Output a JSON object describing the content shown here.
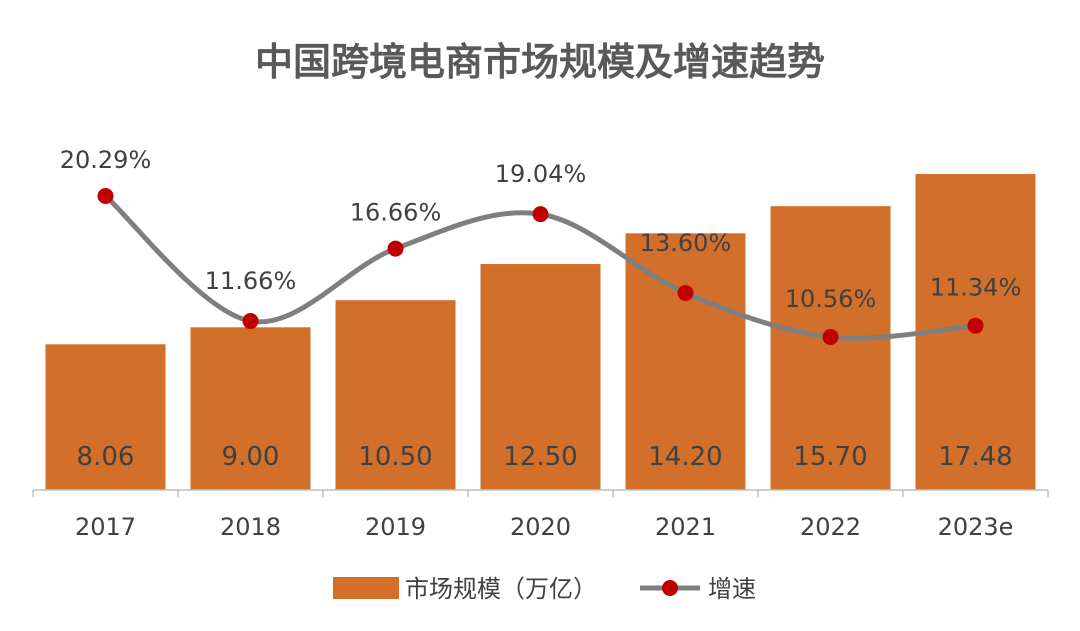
{
  "chart_data": {
    "title": "中国跨境电商市场规模及增速趋势",
    "categories": [
      "2017",
      "2018",
      "2019",
      "2020",
      "2021",
      "2022",
      "2023e"
    ],
    "series": [
      {
        "name": "市场规模（万亿）",
        "type": "bar",
        "values": [
          8.06,
          9.0,
          10.5,
          12.5,
          14.2,
          15.7,
          17.48
        ],
        "labels": [
          "8.06",
          "9.00",
          "10.50",
          "12.50",
          "14.20",
          "15.70",
          "17.48"
        ],
        "color": "#D2702B"
      },
      {
        "name": "增速",
        "type": "line",
        "smooth": true,
        "values": [
          20.29,
          11.66,
          16.66,
          19.04,
          13.6,
          10.56,
          11.34
        ],
        "labels": [
          "20.29%",
          "11.66%",
          "16.66%",
          "19.04%",
          "13.60%",
          "10.56%",
          "11.34%"
        ],
        "color": "#7F7F7F",
        "marker_color": "#C00000"
      }
    ],
    "legend_position": "bottom",
    "grid": false
  }
}
